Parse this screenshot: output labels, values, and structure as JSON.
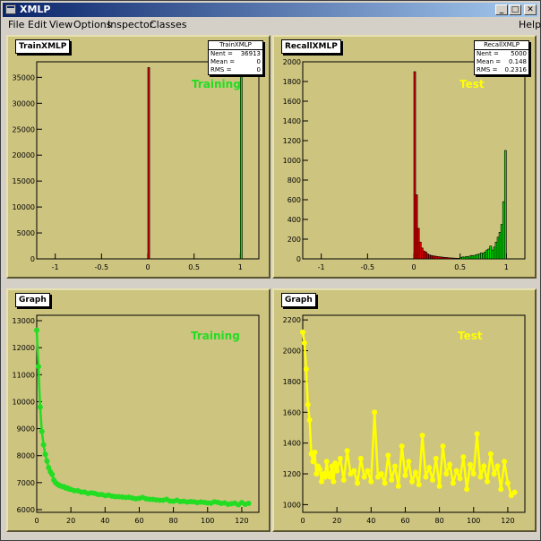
{
  "window": {
    "title": "XMLP",
    "btn_min": "_",
    "btn_max": "□",
    "btn_close": "✕"
  },
  "menu": {
    "items": [
      "File",
      "Edit",
      "View",
      "Options",
      "Inspector",
      "Classes"
    ],
    "help": "Help"
  },
  "colors": {
    "pad_bg": "#cdc480",
    "training": "#22dd22",
    "test": "#ffff00",
    "hist_red": "#e00000",
    "hist_green": "#00e000"
  },
  "pads": {
    "train_hist": {
      "title": "TrainXMLP",
      "label": "Training",
      "stats": {
        "name": "TrainXMLP",
        "nent_label": "Nent =",
        "nent": "36913",
        "mean_label": "Mean =",
        "mean": "0",
        "rms_label": "RMS =",
        "rms": "0"
      }
    },
    "recall_hist": {
      "title": "RecallXMLP",
      "label": "Test",
      "stats": {
        "name": "RecallXMLP",
        "nent_label": "Nent =",
        "nent": "5000",
        "mean_label": "Mean =",
        "mean": "0.148",
        "rms_label": "RMS =",
        "rms": "0.2316"
      }
    },
    "train_graph": {
      "title": "Graph",
      "label": "Training"
    },
    "test_graph": {
      "title": "Graph",
      "label": "Test"
    }
  },
  "chart_data": [
    {
      "type": "bar",
      "title": "TrainXMLP",
      "xlim": [
        -1.2,
        1.2
      ],
      "ylim": [
        0,
        38000
      ],
      "xticks": [
        "-1",
        "-0.5",
        "0",
        "0.5",
        "1"
      ],
      "yticks": [
        "0",
        "5000",
        "10000",
        "15000",
        "20000",
        "25000",
        "30000",
        "35000"
      ],
      "series": [
        {
          "name": "Training",
          "color": "#e00000",
          "x": [
            0.0
          ],
          "values": [
            36900
          ]
        },
        {
          "name": "Training",
          "color": "#00e000",
          "x": [
            1.0
          ],
          "values": [
            36900
          ]
        }
      ]
    },
    {
      "type": "bar",
      "title": "RecallXMLP",
      "xlim": [
        -1.2,
        1.2
      ],
      "ylim": [
        0,
        2000
      ],
      "xticks": [
        "-1",
        "-0.5",
        "0",
        "0.5",
        "1"
      ],
      "yticks": [
        "0",
        "200",
        "400",
        "600",
        "800",
        "1000",
        "1200",
        "1400",
        "1600",
        "1800",
        "2000"
      ],
      "series": [
        {
          "name": "Test",
          "color": "#e00000",
          "x": [
            0.0,
            0.02,
            0.04,
            0.06,
            0.08,
            0.1,
            0.12,
            0.14,
            0.16,
            0.18,
            0.2,
            0.22,
            0.24,
            0.26,
            0.28,
            0.3,
            0.32,
            0.34,
            0.36,
            0.38,
            0.4,
            0.42,
            0.44,
            0.46,
            0.48,
            0.5
          ],
          "values": [
            1900,
            650,
            310,
            170,
            110,
            80,
            70,
            50,
            40,
            35,
            30,
            28,
            25,
            22,
            20,
            18,
            15,
            14,
            12,
            10,
            9,
            8,
            7,
            6,
            5,
            5
          ]
        },
        {
          "name": "Test",
          "color": "#00e000",
          "x": [
            0.5,
            0.52,
            0.54,
            0.56,
            0.58,
            0.6,
            0.62,
            0.64,
            0.66,
            0.68,
            0.7,
            0.72,
            0.74,
            0.76,
            0.78,
            0.8,
            0.82,
            0.84,
            0.86,
            0.88,
            0.9,
            0.92,
            0.94,
            0.96,
            0.98
          ],
          "values": [
            15,
            20,
            18,
            25,
            20,
            30,
            35,
            30,
            40,
            45,
            50,
            60,
            55,
            70,
            90,
            100,
            130,
            90,
            120,
            170,
            220,
            270,
            350,
            580,
            1100
          ]
        }
      ]
    },
    {
      "type": "line",
      "title": "Graph",
      "color": "#22dd22",
      "xlim": [
        0,
        130
      ],
      "ylim": [
        5900,
        13200
      ],
      "xticks": [
        "0",
        "20",
        "40",
        "60",
        "80",
        "100",
        "120"
      ],
      "yticks": [
        "6000",
        "7000",
        "8000",
        "9000",
        "10000",
        "11000",
        "12000",
        "13000"
      ],
      "x": [
        0,
        1,
        2,
        3,
        4,
        5,
        6,
        7,
        8,
        9,
        10,
        11,
        12,
        13,
        14,
        15,
        16,
        17,
        18,
        19,
        20,
        22,
        24,
        26,
        28,
        30,
        32,
        34,
        36,
        38,
        40,
        42,
        44,
        46,
        48,
        50,
        52,
        54,
        56,
        58,
        60,
        62,
        64,
        66,
        68,
        70,
        72,
        74,
        76,
        78,
        80,
        82,
        84,
        86,
        88,
        90,
        92,
        94,
        96,
        98,
        100,
        102,
        104,
        106,
        108,
        110,
        112,
        114,
        116,
        118,
        120,
        122,
        124
      ],
      "values": [
        12650,
        11300,
        9800,
        8900,
        8400,
        8050,
        7800,
        7550,
        7400,
        7300,
        7100,
        7000,
        6950,
        6900,
        6880,
        6850,
        6850,
        6800,
        6800,
        6760,
        6750,
        6700,
        6700,
        6650,
        6650,
        6600,
        6620,
        6600,
        6560,
        6560,
        6520,
        6540,
        6500,
        6480,
        6480,
        6470,
        6450,
        6460,
        6430,
        6400,
        6420,
        6450,
        6400,
        6380,
        6380,
        6360,
        6350,
        6350,
        6380,
        6320,
        6310,
        6350,
        6300,
        6310,
        6280,
        6300,
        6290,
        6260,
        6280,
        6270,
        6250,
        6240,
        6290,
        6270,
        6230,
        6250,
        6200,
        6220,
        6240,
        6180,
        6260,
        6200,
        6230
      ]
    },
    {
      "type": "line",
      "title": "Graph",
      "color": "#ffff00",
      "xlim": [
        0,
        130
      ],
      "ylim": [
        950,
        2230
      ],
      "xticks": [
        "0",
        "20",
        "40",
        "60",
        "80",
        "100",
        "120"
      ],
      "yticks": [
        "1000",
        "1200",
        "1400",
        "1600",
        "1800",
        "2000",
        "2200"
      ],
      "x": [
        0,
        1,
        2,
        3,
        4,
        5,
        6,
        7,
        8,
        9,
        10,
        11,
        12,
        13,
        14,
        15,
        16,
        17,
        18,
        19,
        20,
        22,
        24,
        26,
        28,
        30,
        32,
        34,
        36,
        38,
        40,
        42,
        44,
        46,
        48,
        50,
        52,
        54,
        56,
        58,
        60,
        62,
        64,
        66,
        68,
        70,
        72,
        74,
        76,
        78,
        80,
        82,
        84,
        86,
        88,
        90,
        92,
        94,
        96,
        98,
        100,
        102,
        104,
        106,
        108,
        110,
        112,
        114,
        116,
        118,
        120,
        122,
        124
      ],
      "values": [
        2120,
        2050,
        1880,
        1650,
        1550,
        1330,
        1280,
        1340,
        1200,
        1250,
        1230,
        1150,
        1200,
        1180,
        1280,
        1200,
        1180,
        1250,
        1150,
        1270,
        1220,
        1300,
        1160,
        1350,
        1200,
        1220,
        1140,
        1300,
        1180,
        1220,
        1150,
        1600,
        1180,
        1200,
        1140,
        1320,
        1160,
        1250,
        1120,
        1380,
        1190,
        1280,
        1150,
        1210,
        1130,
        1450,
        1180,
        1240,
        1160,
        1300,
        1120,
        1380,
        1200,
        1260,
        1140,
        1220,
        1170,
        1310,
        1100,
        1260,
        1200,
        1460,
        1180,
        1250,
        1150,
        1330,
        1200,
        1250,
        1100,
        1280,
        1140,
        1060,
        1080
      ]
    }
  ]
}
